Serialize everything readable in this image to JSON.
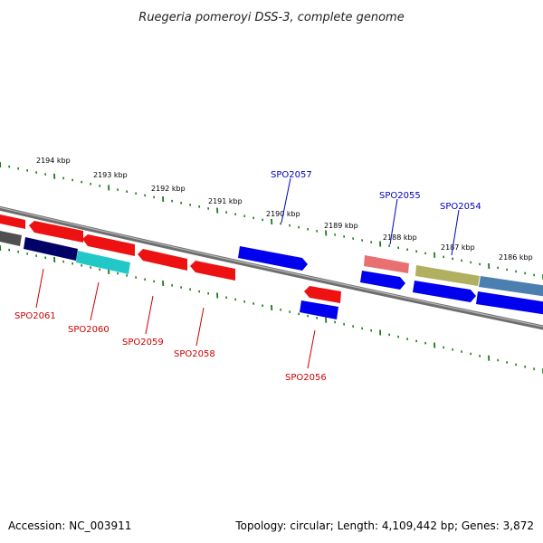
{
  "title": "Ruegeria pomeroyi DSS-3, complete genome",
  "footer": {
    "accession": "Accession: NC_003911",
    "topology": "Topology: circular; Length: 4,109,442 bp; Genes: 3,872"
  },
  "colors": {
    "backbone": "#808080",
    "tick": "#1a7a1a",
    "forward_label": "#0000c0",
    "reverse_label": "#cc0000"
  },
  "scale_labels": [
    "2194 kbp",
    "2193 kbp",
    "2192 kbp",
    "2191 kbp",
    "2190 kbp",
    "2189 kbp",
    "2188 kbp",
    "2187 kbp",
    "2186 kbp"
  ],
  "genes": [
    {
      "label": "SPO2061",
      "strand": "reverse",
      "color": "#000066"
    },
    {
      "label": "SPO2060",
      "strand": "reverse",
      "color": "#22c8c8"
    },
    {
      "label": "SPO2059",
      "strand": "reverse",
      "color": "#ee1111"
    },
    {
      "label": "SPO2058",
      "strand": "reverse",
      "color": "#ee1111"
    },
    {
      "label": "SPO2057",
      "strand": "forward",
      "color": "#0000ee"
    },
    {
      "label": "SPO2056",
      "strand": "reverse",
      "color": "#0000ee"
    },
    {
      "label": "SPO2055",
      "strand": "forward",
      "color": "#0000ee"
    },
    {
      "label": "SPO2054",
      "strand": "forward",
      "color": "#0000ee"
    }
  ]
}
